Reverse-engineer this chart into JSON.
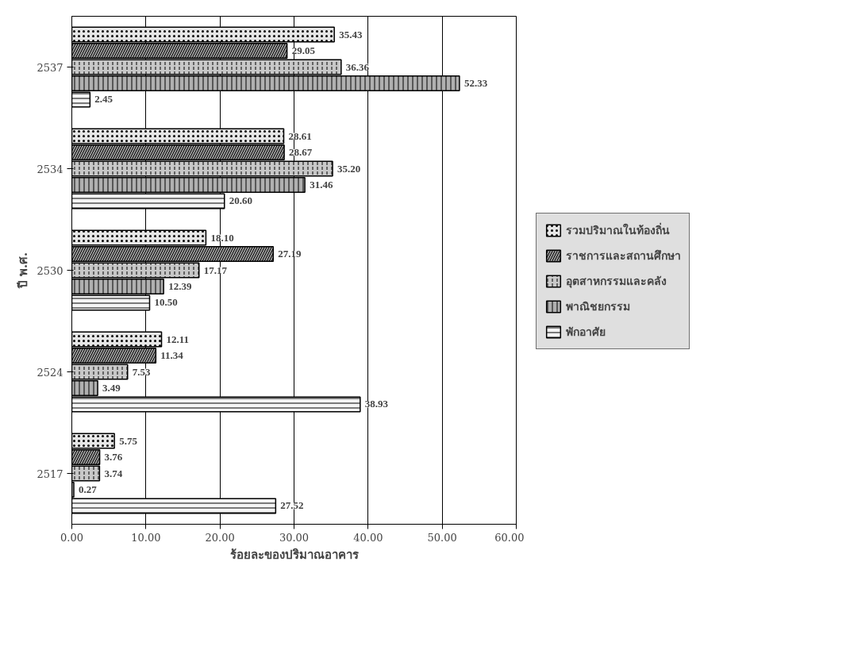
{
  "chart_data": {
    "type": "bar",
    "orientation": "horizontal",
    "xlabel": "ร้อยละของปริมาณอาคาร",
    "ylabel": "ปี พ.ศ.",
    "categories": [
      "2537",
      "2534",
      "2530",
      "2524",
      "2517"
    ],
    "series": [
      {
        "name": "รวมปริมาณในท้องถิ่น",
        "color": "#e6e6e6",
        "values": [
          35.43,
          28.61,
          18.1,
          12.11,
          5.75
        ],
        "value_labels": [
          "35.43",
          "28.61",
          "18.10",
          "12.11",
          "5.75"
        ]
      },
      {
        "name": "ราชการและสถานศึกษา",
        "color": "#9a9a9a",
        "values": [
          29.05,
          28.67,
          27.19,
          11.34,
          3.76
        ],
        "value_labels": [
          "29.05",
          "28.67",
          "27.19",
          "11.34",
          "3.76"
        ]
      },
      {
        "name": "อุตสาหกรรมและคลัง",
        "color": "#c8c8c8",
        "values": [
          36.36,
          35.2,
          17.17,
          7.53,
          3.74
        ],
        "value_labels": [
          "36.36",
          "35.20",
          "17.17",
          "7.53",
          "3.74"
        ]
      },
      {
        "name": "พาณิชยกรรม",
        "color": "#b0b0b0",
        "values": [
          52.33,
          31.46,
          12.39,
          3.49,
          0.27
        ],
        "value_labels": [
          "52.33",
          "31.46",
          "12.39",
          "3.49",
          "0.27"
        ]
      },
      {
        "name": "พักอาศัย",
        "color": "#f4f4f4",
        "values": [
          2.45,
          20.6,
          10.5,
          38.93,
          27.52
        ],
        "value_labels": [
          "2.45",
          "20.60",
          "10.50",
          "38.93",
          "27.52"
        ]
      }
    ],
    "xlim": [
      0,
      60
    ],
    "xticks": [
      {
        "value": 0,
        "label": "0.00"
      },
      {
        "value": 10,
        "label": "10.00"
      },
      {
        "value": 20,
        "label": "20.00"
      },
      {
        "value": 30,
        "label": "30.00"
      },
      {
        "value": 40,
        "label": "40.00"
      },
      {
        "value": 50,
        "label": "50.00"
      },
      {
        "value": 60,
        "label": "60.00"
      }
    ],
    "grid": "x",
    "legend": "right",
    "data_labels": true
  }
}
